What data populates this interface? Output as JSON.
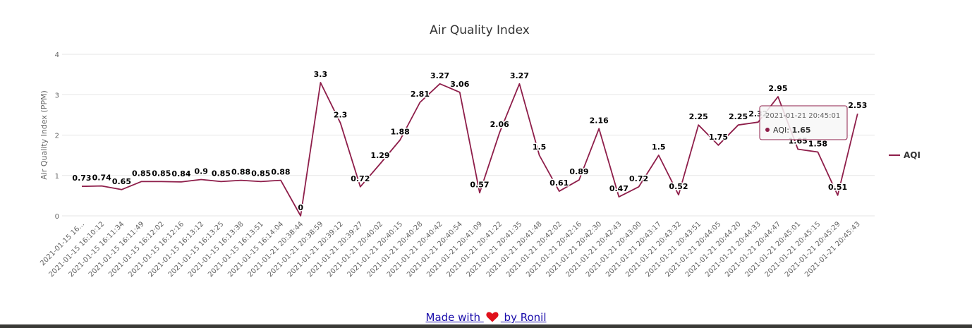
{
  "footer": {
    "made_with": "Made with",
    "by": "by Ronil"
  },
  "colors": {
    "series": "#8e1e4a",
    "grid": "#e6e6e6",
    "heart": "#e0111b",
    "footer_bar": "#3a3a36"
  },
  "icons": {
    "heart": "heart-icon",
    "legend": "legend-line-marker"
  },
  "tooltip": {
    "time": "2021-01-21 20:45:01",
    "series": "AQI",
    "value": "1.65"
  },
  "chart_data": {
    "type": "line",
    "title": "Air Quality Index",
    "ylabel": "Air Quality Index (PPM)",
    "xlabel": "",
    "ylim": [
      0,
      4
    ],
    "yticks": [
      0,
      1,
      2,
      3,
      4
    ],
    "grid": true,
    "legend_position": "right",
    "categories": [
      "2021-01-15 16...",
      "2021-01-15 16:10:12",
      "2021-01-15 16:11:34",
      "2021-01-15 16:11:49",
      "2021-01-15 16:12:02",
      "2021-01-15 16:12:16",
      "2021-01-15 16:13:12",
      "2021-01-15 16:13:25",
      "2021-01-15 16:13:38",
      "2021-01-15 16:13:51",
      "2021-01-15 16:14:04",
      "2021-01-21 20:38:44",
      "2021-01-21 20:38:59",
      "2021-01-21 20:39:12",
      "2021-01-21 20:39:27",
      "2021-01-21 20:40:02",
      "2021-01-21 20:40:15",
      "2021-01-21 20:40:28",
      "2021-01-21 20:40:42",
      "2021-01-21 20:40:54",
      "2021-01-21 20:41:09",
      "2021-01-21 20:41:22",
      "2021-01-21 20:41:35",
      "2021-01-21 20:41:48",
      "2021-01-21 20:42:02",
      "2021-01-21 20:42:16",
      "2021-01-21 20:42:30",
      "2021-01-21 20:42:43",
      "2021-01-21 20:43:00",
      "2021-01-21 20:43:17",
      "2021-01-21 20:43:32",
      "2021-01-21 20:43:51",
      "2021-01-21 20:44:05",
      "2021-01-21 20:44:20",
      "2021-01-21 20:44:33",
      "2021-01-21 20:44:47",
      "2021-01-21 20:45:01",
      "2021-01-21 20:45:15",
      "2021-01-21 20:45:29",
      "2021-01-21 20:45:43"
    ],
    "series": [
      {
        "name": "AQI",
        "values": [
          0.73,
          0.74,
          0.65,
          0.85,
          0.85,
          0.84,
          0.9,
          0.85,
          0.88,
          0.85,
          0.88,
          0,
          3.3,
          2.3,
          0.72,
          1.29,
          1.88,
          2.81,
          3.27,
          3.06,
          0.57,
          2.06,
          3.27,
          1.5,
          0.61,
          0.89,
          2.16,
          0.47,
          0.72,
          1.5,
          0.52,
          2.25,
          1.75,
          2.25,
          2.32,
          2.95,
          1.65,
          1.58,
          0.51,
          2.53
        ],
        "labels": [
          "0.73",
          "0.74",
          "0.65",
          "0.85",
          "0.85",
          "0.84",
          "0.9",
          "0.85",
          "0.88",
          "0.85",
          "0.88",
          "0",
          "3.3",
          "2.3",
          "0.72",
          "1.29",
          "1.88",
          "2.81",
          "3.27",
          "3.06",
          "0.57",
          "2.06",
          "3.27",
          "1.5",
          "0.61",
          "0.89",
          "2.16",
          "0.47",
          "0.72",
          "1.5",
          "0.52",
          "2.25",
          "1.75",
          "2.25",
          "2.32",
          "2.95",
          "1.65",
          "1.58",
          "0.51",
          "2.53"
        ]
      }
    ]
  }
}
